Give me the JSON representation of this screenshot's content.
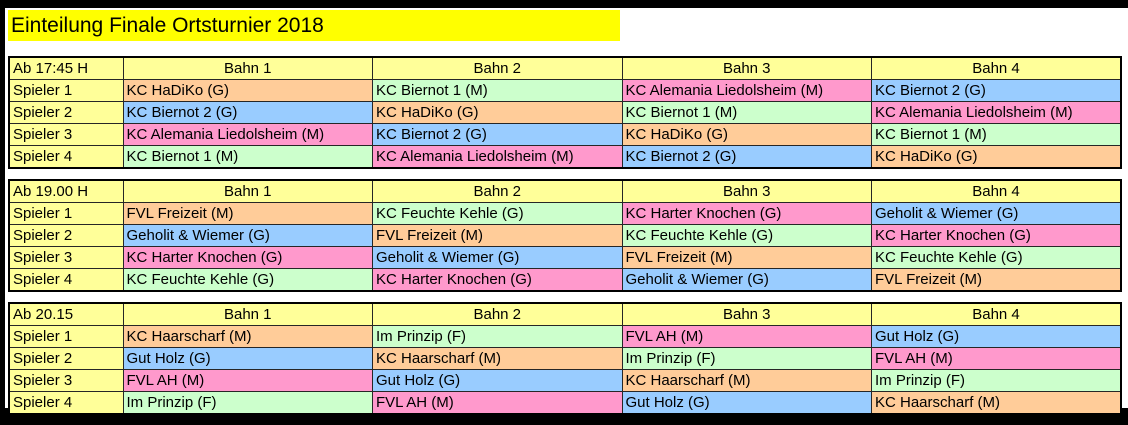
{
  "page": {
    "title": "Einteilung Finale Ortsturnier 2018",
    "title_bg": "#FFFF00"
  },
  "palette": {
    "yellow": "#FFFF99",
    "orange": "#FFCC99",
    "blue": "#99CCFF",
    "pink": "#FF99CC",
    "green": "#CCFFCC"
  },
  "tables": [
    {
      "time": "Ab 17:45 H",
      "columns": [
        "Bahn 1",
        "Bahn 2",
        "Bahn 3",
        "Bahn 4"
      ],
      "rows": [
        {
          "label": "Spieler 1",
          "cells": [
            {
              "text": "KC HaDiKo (G)",
              "color": "orange"
            },
            {
              "text": "KC Biernot 1 (M)",
              "color": "green"
            },
            {
              "text": "KC Alemania Liedolsheim (M)",
              "color": "pink"
            },
            {
              "text": "KC Biernot 2 (G)",
              "color": "blue"
            }
          ]
        },
        {
          "label": "Spieler 2",
          "cells": [
            {
              "text": "KC Biernot 2 (G)",
              "color": "blue"
            },
            {
              "text": "KC HaDiKo (G)",
              "color": "orange"
            },
            {
              "text": "KC Biernot 1 (M)",
              "color": "green"
            },
            {
              "text": "KC Alemania Liedolsheim (M)",
              "color": "pink"
            }
          ]
        },
        {
          "label": "Spieler 3",
          "cells": [
            {
              "text": "KC Alemania Liedolsheim (M)",
              "color": "pink"
            },
            {
              "text": "KC Biernot 2 (G)",
              "color": "blue"
            },
            {
              "text": "KC HaDiKo (G)",
              "color": "orange"
            },
            {
              "text": "KC Biernot 1 (M)",
              "color": "green"
            }
          ]
        },
        {
          "label": "Spieler 4",
          "cells": [
            {
              "text": "KC Biernot 1 (M)",
              "color": "green"
            },
            {
              "text": "KC Alemania Liedolsheim (M)",
              "color": "pink"
            },
            {
              "text": "KC Biernot 2 (G)",
              "color": "blue"
            },
            {
              "text": "KC HaDiKo (G)",
              "color": "orange"
            }
          ]
        }
      ]
    },
    {
      "time": "Ab 19.00 H",
      "columns": [
        "Bahn 1",
        "Bahn 2",
        "Bahn 3",
        "Bahn 4"
      ],
      "rows": [
        {
          "label": "Spieler 1",
          "cells": [
            {
              "text": "FVL Freizeit (M)",
              "color": "orange"
            },
            {
              "text": "KC Feuchte Kehle (G)",
              "color": "green"
            },
            {
              "text": "KC Harter Knochen (G)",
              "color": "pink"
            },
            {
              "text": "Geholit & Wiemer (G)",
              "color": "blue"
            }
          ]
        },
        {
          "label": "Spieler 2",
          "cells": [
            {
              "text": "Geholit & Wiemer (G)",
              "color": "blue"
            },
            {
              "text": "FVL Freizeit (M)",
              "color": "orange"
            },
            {
              "text": "KC Feuchte Kehle (G)",
              "color": "green"
            },
            {
              "text": "KC Harter Knochen (G)",
              "color": "pink"
            }
          ]
        },
        {
          "label": "Spieler 3",
          "cells": [
            {
              "text": "KC Harter Knochen (G)",
              "color": "pink"
            },
            {
              "text": "Geholit & Wiemer (G)",
              "color": "blue"
            },
            {
              "text": "FVL Freizeit (M)",
              "color": "orange"
            },
            {
              "text": "KC Feuchte Kehle (G)",
              "color": "green"
            }
          ]
        },
        {
          "label": "Spieler 4",
          "cells": [
            {
              "text": "KC Feuchte Kehle (G)",
              "color": "green"
            },
            {
              "text": "KC Harter Knochen (G)",
              "color": "pink"
            },
            {
              "text": "Geholit & Wiemer (G)",
              "color": "blue"
            },
            {
              "text": "FVL Freizeit (M)",
              "color": "orange"
            }
          ]
        }
      ]
    },
    {
      "time": "Ab 20.15",
      "columns": [
        "Bahn 1",
        "Bahn 2",
        "Bahn 3",
        "Bahn 4"
      ],
      "rows": [
        {
          "label": "Spieler 1",
          "cells": [
            {
              "text": "KC Haarscharf (M)",
              "color": "orange"
            },
            {
              "text": "Im Prinzip (F)",
              "color": "green"
            },
            {
              "text": "FVL AH (M)",
              "color": "pink"
            },
            {
              "text": "Gut Holz (G)",
              "color": "blue"
            }
          ]
        },
        {
          "label": "Spieler 2",
          "cells": [
            {
              "text": "Gut Holz (G)",
              "color": "blue"
            },
            {
              "text": "KC Haarscharf (M)",
              "color": "orange"
            },
            {
              "text": "Im Prinzip (F)",
              "color": "green"
            },
            {
              "text": "FVL AH (M)",
              "color": "pink"
            }
          ]
        },
        {
          "label": "Spieler 3",
          "cells": [
            {
              "text": "FVL AH (M)",
              "color": "pink"
            },
            {
              "text": "Gut Holz (G)",
              "color": "blue"
            },
            {
              "text": "KC Haarscharf (M)",
              "color": "orange"
            },
            {
              "text": "Im Prinzip (F)",
              "color": "green"
            }
          ]
        },
        {
          "label": "Spieler 4",
          "cells": [
            {
              "text": "Im Prinzip (F)",
              "color": "green"
            },
            {
              "text": "FVL AH (M)",
              "color": "pink"
            },
            {
              "text": "Gut Holz (G)",
              "color": "blue"
            },
            {
              "text": "KC Haarscharf (M)",
              "color": "orange"
            }
          ]
        }
      ]
    }
  ]
}
